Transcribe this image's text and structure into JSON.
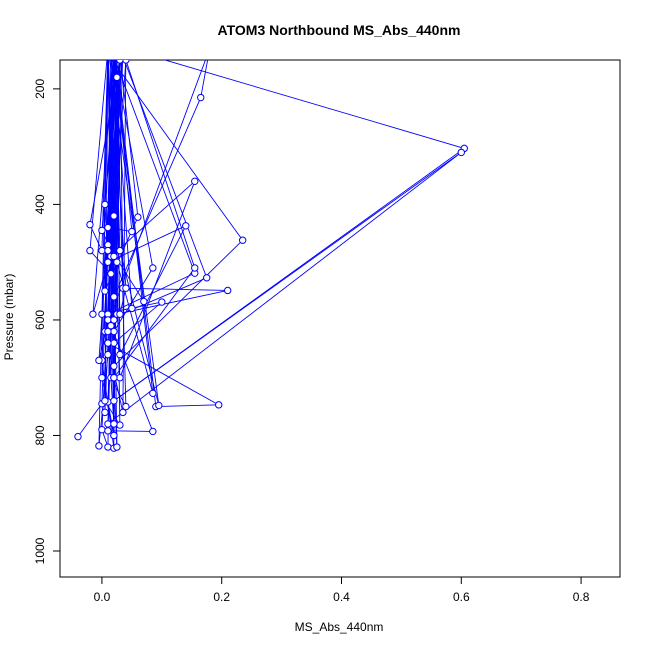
{
  "chart_data": {
    "type": "line",
    "title": "ATOM3 Northbound MS_Abs_440nm",
    "xlabel": "MS_Abs_440nm",
    "ylabel": "Pressure (mbar)",
    "xlim": [
      -0.07,
      0.865
    ],
    "ylim": [
      1045,
      150
    ],
    "y_reversed": true,
    "x_ticks": [
      "0.0",
      "0.2",
      "0.4",
      "0.6",
      "0.8"
    ],
    "y_ticks": [
      "200",
      "400",
      "600",
      "800",
      "1000"
    ],
    "grid": false,
    "series_color": "#0000ff",
    "series": [
      {
        "marker": "open-circle",
        "points": [
          [
            -0.04,
            802
          ],
          [
            0.0,
            745
          ],
          [
            0.02,
            130
          ],
          [
            0.01,
            820
          ],
          [
            0.0,
            790
          ],
          [
            0.03,
            140
          ],
          [
            0.01,
            742
          ],
          [
            0.02,
            800
          ],
          [
            0.03,
            130
          ],
          [
            0.015,
            700
          ],
          [
            0.04,
            750
          ],
          [
            0.025,
            180
          ],
          [
            0.01,
            640
          ],
          [
            0.195,
            747
          ],
          [
            0.09,
            750
          ],
          [
            0.02,
            130
          ],
          [
            0.015,
            610
          ],
          [
            0.085,
            793
          ],
          [
            0.01,
            792
          ],
          [
            0.03,
            130
          ],
          [
            0.0,
            670
          ],
          [
            0.02,
            822
          ],
          [
            0.01,
            140
          ],
          [
            0.02,
            560
          ],
          [
            0.165,
            215
          ],
          [
            0.18,
            130
          ],
          [
            0.005,
            620
          ],
          [
            0.035,
            760
          ],
          [
            0.04,
            130
          ],
          [
            0.605,
            303
          ],
          [
            0.02,
            740
          ],
          [
            0.6,
            310
          ],
          [
            0.01,
            780
          ],
          [
            0.03,
            130
          ],
          [
            0.035,
            545
          ],
          [
            0.21,
            549
          ],
          [
            0.025,
            590
          ],
          [
            0.02,
            130
          ],
          [
            0.015,
            490
          ],
          [
            0.155,
            360
          ],
          [
            0.03,
            700
          ],
          [
            0.01,
            140
          ],
          [
            0.235,
            462
          ],
          [
            0.02,
            680
          ],
          [
            0.035,
            130
          ],
          [
            0.01,
            500
          ],
          [
            0.14,
            437
          ],
          [
            0.03,
            660
          ],
          [
            0.025,
            140
          ],
          [
            0.0,
            590
          ],
          [
            0.1,
            569
          ],
          [
            0.02,
            640
          ],
          [
            0.015,
            130
          ],
          [
            0.155,
            519
          ],
          [
            0.01,
            590
          ],
          [
            0.04,
            150
          ],
          [
            0.155,
            510
          ],
          [
            0.02,
            700
          ],
          [
            0.03,
            130
          ],
          [
            0.175,
            527
          ],
          [
            0.01,
            600
          ],
          [
            0.02,
            140
          ],
          [
            0.085,
            510
          ],
          [
            0.02,
            620
          ],
          [
            0.015,
            130
          ],
          [
            0.095,
            748
          ],
          [
            0.03,
            480
          ],
          [
            0.02,
            140
          ],
          [
            0.085,
            727
          ],
          [
            0.025,
            500
          ],
          [
            0.01,
            130
          ],
          [
            0.07,
            568
          ],
          [
            0.01,
            470
          ],
          [
            0.03,
            140
          ],
          [
            0.06,
            422
          ],
          [
            0.005,
            550
          ],
          [
            0.02,
            130
          ],
          [
            0.05,
            447
          ],
          [
            0.01,
            440
          ],
          [
            0.03,
            150
          ],
          [
            -0.02,
            435
          ],
          [
            0.0,
            480
          ],
          [
            0.01,
            130
          ],
          [
            -0.02,
            480
          ],
          [
            0.015,
            520
          ],
          [
            0.02,
            140
          ],
          [
            -0.015,
            590
          ],
          [
            0.01,
            500
          ],
          [
            0.025,
            130
          ],
          [
            0.02,
            800
          ],
          [
            0.0,
            700
          ],
          [
            0.01,
            140
          ],
          [
            -0.005,
            818
          ],
          [
            0.01,
            660
          ],
          [
            0.02,
            130
          ],
          [
            0.03,
            782
          ],
          [
            0.005,
            740
          ],
          [
            0.015,
            140
          ],
          [
            0.025,
            820
          ],
          [
            0.02,
            700
          ],
          [
            0.01,
            130
          ],
          [
            0.005,
            760
          ],
          [
            0.01,
            640
          ],
          [
            0.03,
            140
          ],
          [
            -0.005,
            670
          ],
          [
            0.02,
            560
          ],
          [
            0.015,
            130
          ],
          [
            0.04,
            545
          ],
          [
            0.03,
            590
          ],
          [
            0.02,
            140
          ],
          [
            0.05,
            580
          ],
          [
            0.02,
            600
          ],
          [
            0.01,
            130
          ],
          [
            0.02,
            420
          ],
          [
            0.015,
            520
          ],
          [
            0.03,
            140
          ],
          [
            0.0,
            445
          ],
          [
            0.02,
            490
          ],
          [
            0.025,
            130
          ],
          [
            0.005,
            400
          ],
          [
            0.01,
            480
          ],
          [
            0.02,
            140
          ],
          [
            0.01,
            620
          ],
          [
            0.02,
            780
          ],
          [
            0.015,
            130
          ]
        ]
      }
    ]
  }
}
